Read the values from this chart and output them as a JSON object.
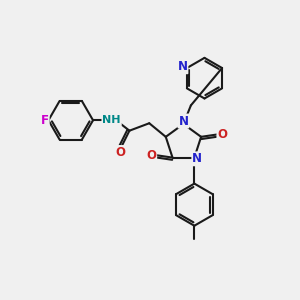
{
  "bg_color": "#f0f0f0",
  "bond_color": "#1a1a1a",
  "bond_width": 1.5,
  "atom_colors": {
    "N_blue": "#2222cc",
    "N_teal": "#008888",
    "O_red": "#cc2222",
    "F_magenta": "#cc00cc",
    "C": "#1a1a1a"
  },
  "font_size_atom": 7.5,
  "fig_size": [
    3.0,
    3.0
  ],
  "dpi": 100,
  "xlim": [
    0,
    12
  ],
  "ylim": [
    0,
    12
  ]
}
